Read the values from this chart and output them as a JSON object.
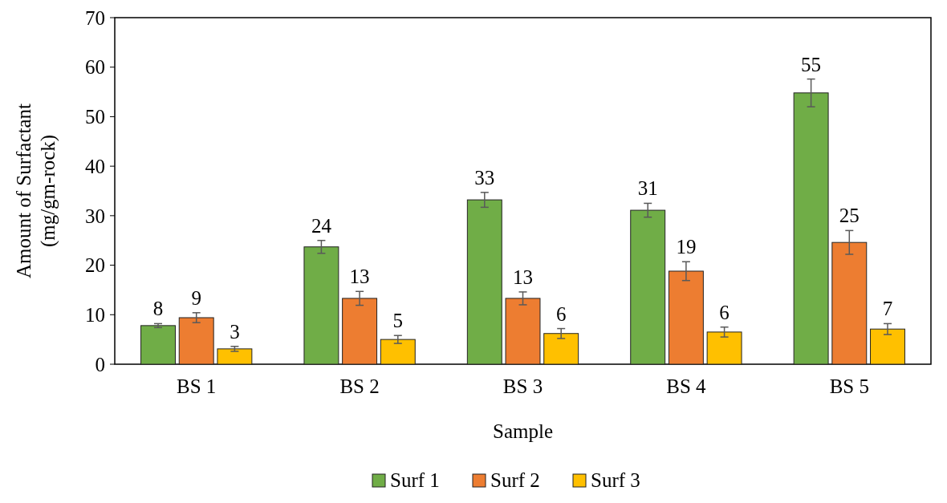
{
  "chart_data": {
    "type": "bar",
    "xlabel": "Sample",
    "ylabel": "Amount of Surfactant (mg/gm-rock)",
    "categories": [
      "BS 1",
      "BS 2",
      "BS 3",
      "BS 4",
      "BS 5"
    ],
    "series": [
      {
        "name": "Surf 1",
        "color": "#70ad47",
        "values": [
          7.8,
          23.7,
          33.2,
          31.1,
          54.8
        ],
        "errors": [
          0.4,
          1.3,
          1.5,
          1.4,
          2.8
        ],
        "value_labels": [
          "8",
          "24",
          "33",
          "31",
          "55"
        ]
      },
      {
        "name": "Surf 2",
        "color": "#ed7d31",
        "values": [
          9.4,
          13.3,
          13.3,
          18.8,
          24.6
        ],
        "errors": [
          1,
          1.4,
          1.3,
          1.9,
          2.4
        ],
        "value_labels": [
          "9",
          "13",
          "13",
          "19",
          "25"
        ]
      },
      {
        "name": "Surf 3",
        "color": "#ffc000",
        "values": [
          3.1,
          5,
          6.2,
          6.5,
          7.1
        ],
        "errors": [
          0.5,
          0.8,
          1,
          1,
          1.1
        ],
        "value_labels": [
          "3",
          "5",
          "6",
          "6",
          "7"
        ]
      }
    ],
    "ylim": [
      0,
      70
    ],
    "yticks": [
      0,
      10,
      20,
      30,
      40,
      50,
      60,
      70
    ],
    "grid": false,
    "legend": "bottom"
  }
}
